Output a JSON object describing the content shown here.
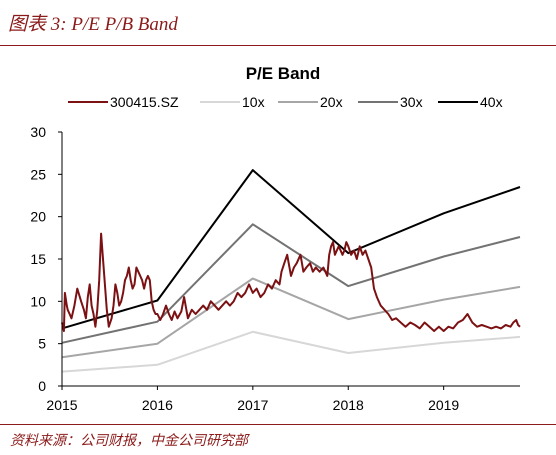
{
  "figure_title": "图表 3: P/E P/B Band",
  "source_note": "资料来源：公司财报，中金公司研究部",
  "chart_data": {
    "type": "line",
    "title": "P/E Band",
    "xlabel": "",
    "ylabel": "",
    "ylim": [
      0,
      30
    ],
    "xlim": [
      2015.0,
      2019.8
    ],
    "x_ticks": [
      "2015",
      "2016",
      "2017",
      "2018",
      "2019"
    ],
    "y_ticks": [
      "0",
      "5",
      "10",
      "15",
      "20",
      "25",
      "30"
    ],
    "grid": false,
    "legend_position": "top",
    "series": [
      {
        "name": "300415.SZ",
        "color": "#7b1113",
        "x": [
          2015.0,
          2015.02,
          2015.03,
          2015.05,
          2015.06,
          2015.08,
          2015.1,
          2015.13,
          2015.16,
          2015.2,
          2015.23,
          2015.25,
          2015.27,
          2015.29,
          2015.31,
          2015.33,
          2015.35,
          2015.37,
          2015.39,
          2015.41,
          2015.43,
          2015.45,
          2015.47,
          2015.49,
          2015.52,
          2015.54,
          2015.56,
          2015.58,
          2015.6,
          2015.62,
          2015.64,
          2015.66,
          2015.68,
          2015.7,
          2015.72,
          2015.74,
          2015.76,
          2015.78,
          2015.8,
          2015.82,
          2015.84,
          2015.86,
          2015.88,
          2015.9,
          2015.92,
          2015.94,
          2015.96,
          2015.98,
          2016.0,
          2016.03,
          2016.06,
          2016.09,
          2016.12,
          2016.15,
          2016.18,
          2016.21,
          2016.25,
          2016.28,
          2016.32,
          2016.36,
          2016.4,
          2016.44,
          2016.48,
          2016.52,
          2016.56,
          2016.6,
          2016.64,
          2016.68,
          2016.72,
          2016.76,
          2016.8,
          2016.84,
          2016.88,
          2016.92,
          2016.96,
          2017.0,
          2017.04,
          2017.08,
          2017.12,
          2017.16,
          2017.2,
          2017.24,
          2017.28,
          2017.3,
          2017.33,
          2017.36,
          2017.4,
          2017.43,
          2017.46,
          2017.5,
          2017.53,
          2017.56,
          2017.6,
          2017.63,
          2017.66,
          2017.7,
          2017.74,
          2017.78,
          2017.8,
          2017.82,
          2017.84,
          2017.86,
          2017.88,
          2017.9,
          2017.92,
          2017.94,
          2017.96,
          2017.98,
          2018.0,
          2018.03,
          2018.06,
          2018.09,
          2018.12,
          2018.15,
          2018.18,
          2018.21,
          2018.24,
          2018.27,
          2018.3,
          2018.34,
          2018.38,
          2018.42,
          2018.46,
          2018.5,
          2018.55,
          2018.6,
          2018.65,
          2018.7,
          2018.75,
          2018.8,
          2018.85,
          2018.9,
          2018.95,
          2019.0,
          2019.05,
          2019.1,
          2019.15,
          2019.2,
          2019.25,
          2019.3,
          2019.35,
          2019.4,
          2019.45,
          2019.5,
          2019.55,
          2019.6,
          2019.65,
          2019.7,
          2019.73,
          2019.76,
          2019.78,
          2019.8
        ],
        "values": [
          7.5,
          6.5,
          11.0,
          9.5,
          9.0,
          8.5,
          8.0,
          9.5,
          11.5,
          10.0,
          9.0,
          8.0,
          10.5,
          12.0,
          9.5,
          8.5,
          7.0,
          9.0,
          12.5,
          18.0,
          15.0,
          12.0,
          9.0,
          7.0,
          8.0,
          9.5,
          12.0,
          11.0,
          9.5,
          10.0,
          11.0,
          12.5,
          13.0,
          14.0,
          12.5,
          11.5,
          12.0,
          14.0,
          13.5,
          13.0,
          12.5,
          11.5,
          12.5,
          13.0,
          12.5,
          10.0,
          9.0,
          8.5,
          8.5,
          7.8,
          8.5,
          9.5,
          8.5,
          7.8,
          8.8,
          8.0,
          8.8,
          10.5,
          8.0,
          9.0,
          8.5,
          9.0,
          9.5,
          9.0,
          10.0,
          9.5,
          9.0,
          9.5,
          10.0,
          9.5,
          10.0,
          11.0,
          10.5,
          11.0,
          12.0,
          11.0,
          11.5,
          10.5,
          11.0,
          12.0,
          11.5,
          12.5,
          12.0,
          13.5,
          14.5,
          15.5,
          13.0,
          14.0,
          14.5,
          15.5,
          13.5,
          14.0,
          14.5,
          13.5,
          14.0,
          13.5,
          14.0,
          13.0,
          15.5,
          16.5,
          17.0,
          15.5,
          16.0,
          16.5,
          16.0,
          15.5,
          16.0,
          17.0,
          16.5,
          15.5,
          16.0,
          15.0,
          16.5,
          15.5,
          16.0,
          15.0,
          14.0,
          11.5,
          10.5,
          9.5,
          9.0,
          8.5,
          7.8,
          8.0,
          7.5,
          7.0,
          7.5,
          7.2,
          6.8,
          7.5,
          7.0,
          6.5,
          7.0,
          6.5,
          7.0,
          6.8,
          7.5,
          7.8,
          8.5,
          7.5,
          7.0,
          7.2,
          7.0,
          6.8,
          7.0,
          6.8,
          7.2,
          7.0,
          7.5,
          7.8,
          7.2,
          7.0
        ]
      },
      {
        "name": "10x",
        "color": "#d7d7d7",
        "x": [
          2015.0,
          2016.0,
          2017.0,
          2018.0,
          2019.0,
          2019.8
        ],
        "values": [
          1.7,
          2.5,
          6.4,
          3.9,
          5.1,
          5.8
        ]
      },
      {
        "name": "20x",
        "color": "#a6a6a6",
        "x": [
          2015.0,
          2016.0,
          2017.0,
          2018.0,
          2019.0,
          2019.8
        ],
        "values": [
          3.4,
          5.0,
          12.7,
          7.9,
          10.2,
          11.7
        ]
      },
      {
        "name": "30x",
        "color": "#737373",
        "x": [
          2015.0,
          2016.0,
          2017.0,
          2018.0,
          2019.0,
          2019.8
        ],
        "values": [
          5.1,
          7.6,
          19.1,
          11.8,
          15.3,
          17.6
        ]
      },
      {
        "name": "40x",
        "color": "#000000",
        "x": [
          2015.0,
          2016.0,
          2017.0,
          2018.0,
          2019.0,
          2019.8
        ],
        "values": [
          6.8,
          10.1,
          25.5,
          15.7,
          20.4,
          23.5
        ]
      }
    ]
  }
}
